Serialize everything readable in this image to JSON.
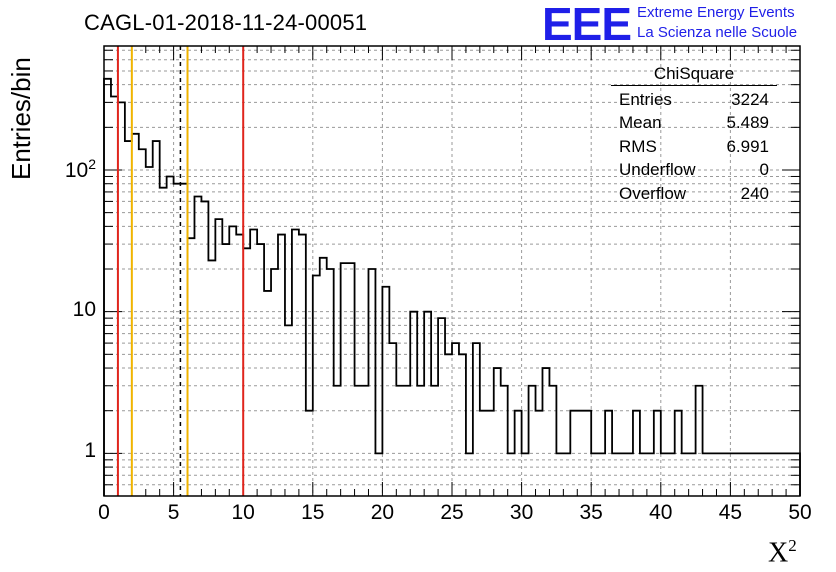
{
  "header": {
    "title": "CAGL-01-2018-11-24-00051",
    "logo_text": "EEE",
    "logo_line1": "Extreme Energy Events",
    "logo_line2": "La Scienza nelle Scuole",
    "logo_color": "#1f1fe8"
  },
  "stats": {
    "title": "ChiSquare",
    "rows": [
      {
        "label": "Entries",
        "value": "3224"
      },
      {
        "label": "Mean",
        "value": "5.489"
      },
      {
        "label": "RMS",
        "value": "6.991"
      },
      {
        "label": "Underflow",
        "value": "0"
      },
      {
        "label": "Overflow",
        "value": "240"
      }
    ]
  },
  "chart_data": {
    "type": "bar",
    "title": "CAGL-01-2018-11-24-00051",
    "xlabel": "X²",
    "ylabel": "Entries/bin",
    "yscale": "log",
    "xlim": [
      0,
      50
    ],
    "ylim": [
      0.5,
      750
    ],
    "bin_width": 0.5,
    "bin_start": 0,
    "x_ticks": [
      0,
      5,
      10,
      15,
      20,
      25,
      30,
      35,
      40,
      45,
      50
    ],
    "x_tick_labels": [
      "0",
      "5",
      "10",
      "15",
      "20",
      "25",
      "30",
      "35",
      "40",
      "45",
      "50"
    ],
    "y_ticks": [
      1,
      10,
      100
    ],
    "y_tick_labels": [
      "1",
      "10",
      "10²"
    ],
    "grid": true,
    "legend": "top-right",
    "values": [
      440,
      330,
      300,
      160,
      180,
      140,
      105,
      160,
      75,
      90,
      80,
      80,
      33,
      65,
      60,
      23,
      45,
      30,
      40,
      35,
      28,
      38,
      30,
      14,
      20,
      35,
      8,
      38,
      35,
      2,
      18,
      24,
      20,
      3,
      22,
      22,
      3,
      3,
      20,
      1,
      15,
      6,
      3,
      3,
      10,
      3,
      10,
      3,
      9,
      5,
      6,
      5,
      1,
      6,
      2,
      2,
      4,
      3,
      1,
      2,
      1,
      3,
      2,
      4,
      3,
      1,
      1,
      2,
      2,
      2,
      1,
      1,
      2,
      1,
      1,
      1,
      2,
      1,
      1,
      2,
      1,
      1,
      2,
      1,
      1,
      3,
      1,
      1,
      1,
      1,
      1,
      1,
      1,
      1,
      1,
      1,
      1,
      1,
      1,
      1
    ],
    "vertical_lines": [
      {
        "x": 1,
        "color": "#e0251c",
        "style": "solid"
      },
      {
        "x": 2,
        "color": "#f0b400",
        "style": "solid"
      },
      {
        "x": 5.489,
        "color": "#000000",
        "style": "dashed"
      },
      {
        "x": 6,
        "color": "#f0b400",
        "style": "solid"
      },
      {
        "x": 10,
        "color": "#e0251c",
        "style": "solid"
      }
    ]
  }
}
